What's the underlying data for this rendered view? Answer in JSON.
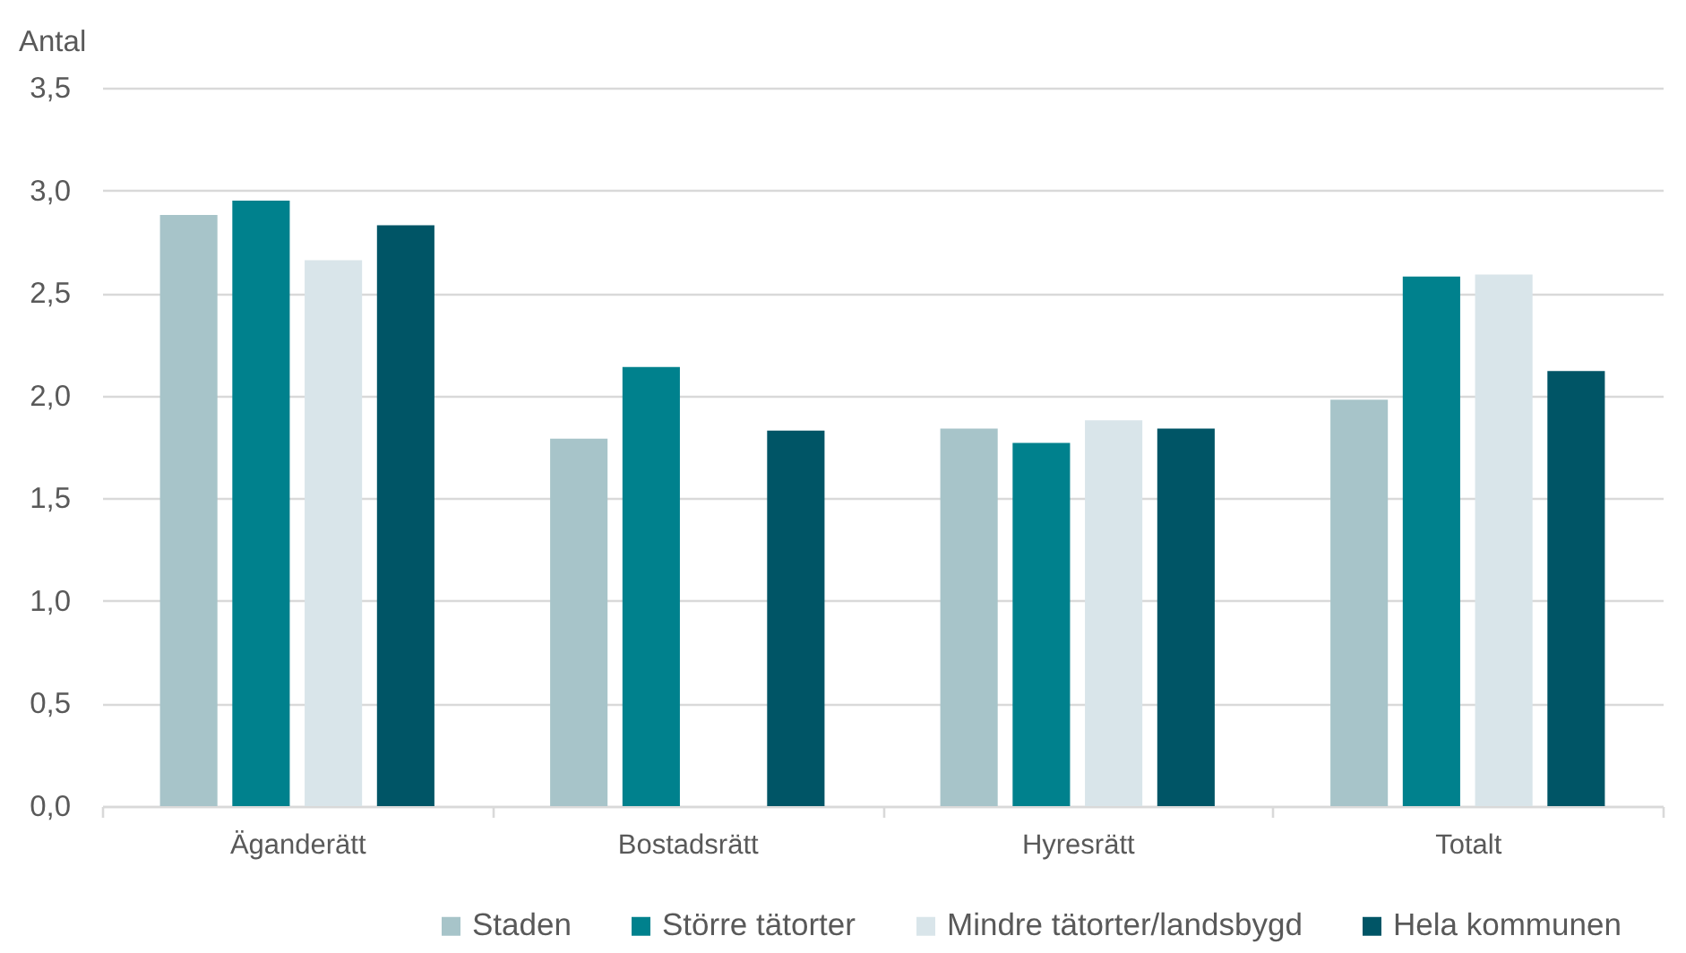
{
  "chart_data": {
    "type": "bar",
    "ylabel": "Antal",
    "categories": [
      "Äganderätt",
      "Bostadsrätt",
      "Hyresrätt",
      "Totalt"
    ],
    "series": [
      {
        "name": "Staden",
        "color": "#a7c4c9",
        "values": [
          2.88,
          1.79,
          1.84,
          1.98
        ]
      },
      {
        "name": "Större tätorter",
        "color": "#00818d",
        "values": [
          2.95,
          2.14,
          1.77,
          2.58
        ]
      },
      {
        "name": "Mindre tätorter/landsbygd",
        "color": "#d9e5ea",
        "values": [
          2.66,
          null,
          1.88,
          2.59
        ]
      },
      {
        "name": "Hela kommunen",
        "color": "#005566",
        "values": [
          2.83,
          1.83,
          1.84,
          2.12
        ]
      }
    ],
    "ylim": [
      0,
      3.5
    ],
    "yticks": [
      {
        "value": 0,
        "label": "0,0"
      },
      {
        "value": 0.5,
        "label": "0,5"
      },
      {
        "value": 1,
        "label": "1,0"
      },
      {
        "value": 1.5,
        "label": "1,5"
      },
      {
        "value": 2,
        "label": "2,0"
      },
      {
        "value": 2.5,
        "label": "2,5"
      },
      {
        "value": 3,
        "label": "3,0"
      },
      {
        "value": 3.5,
        "label": "3,5"
      }
    ],
    "grid": "y",
    "legend": "bottom"
  }
}
